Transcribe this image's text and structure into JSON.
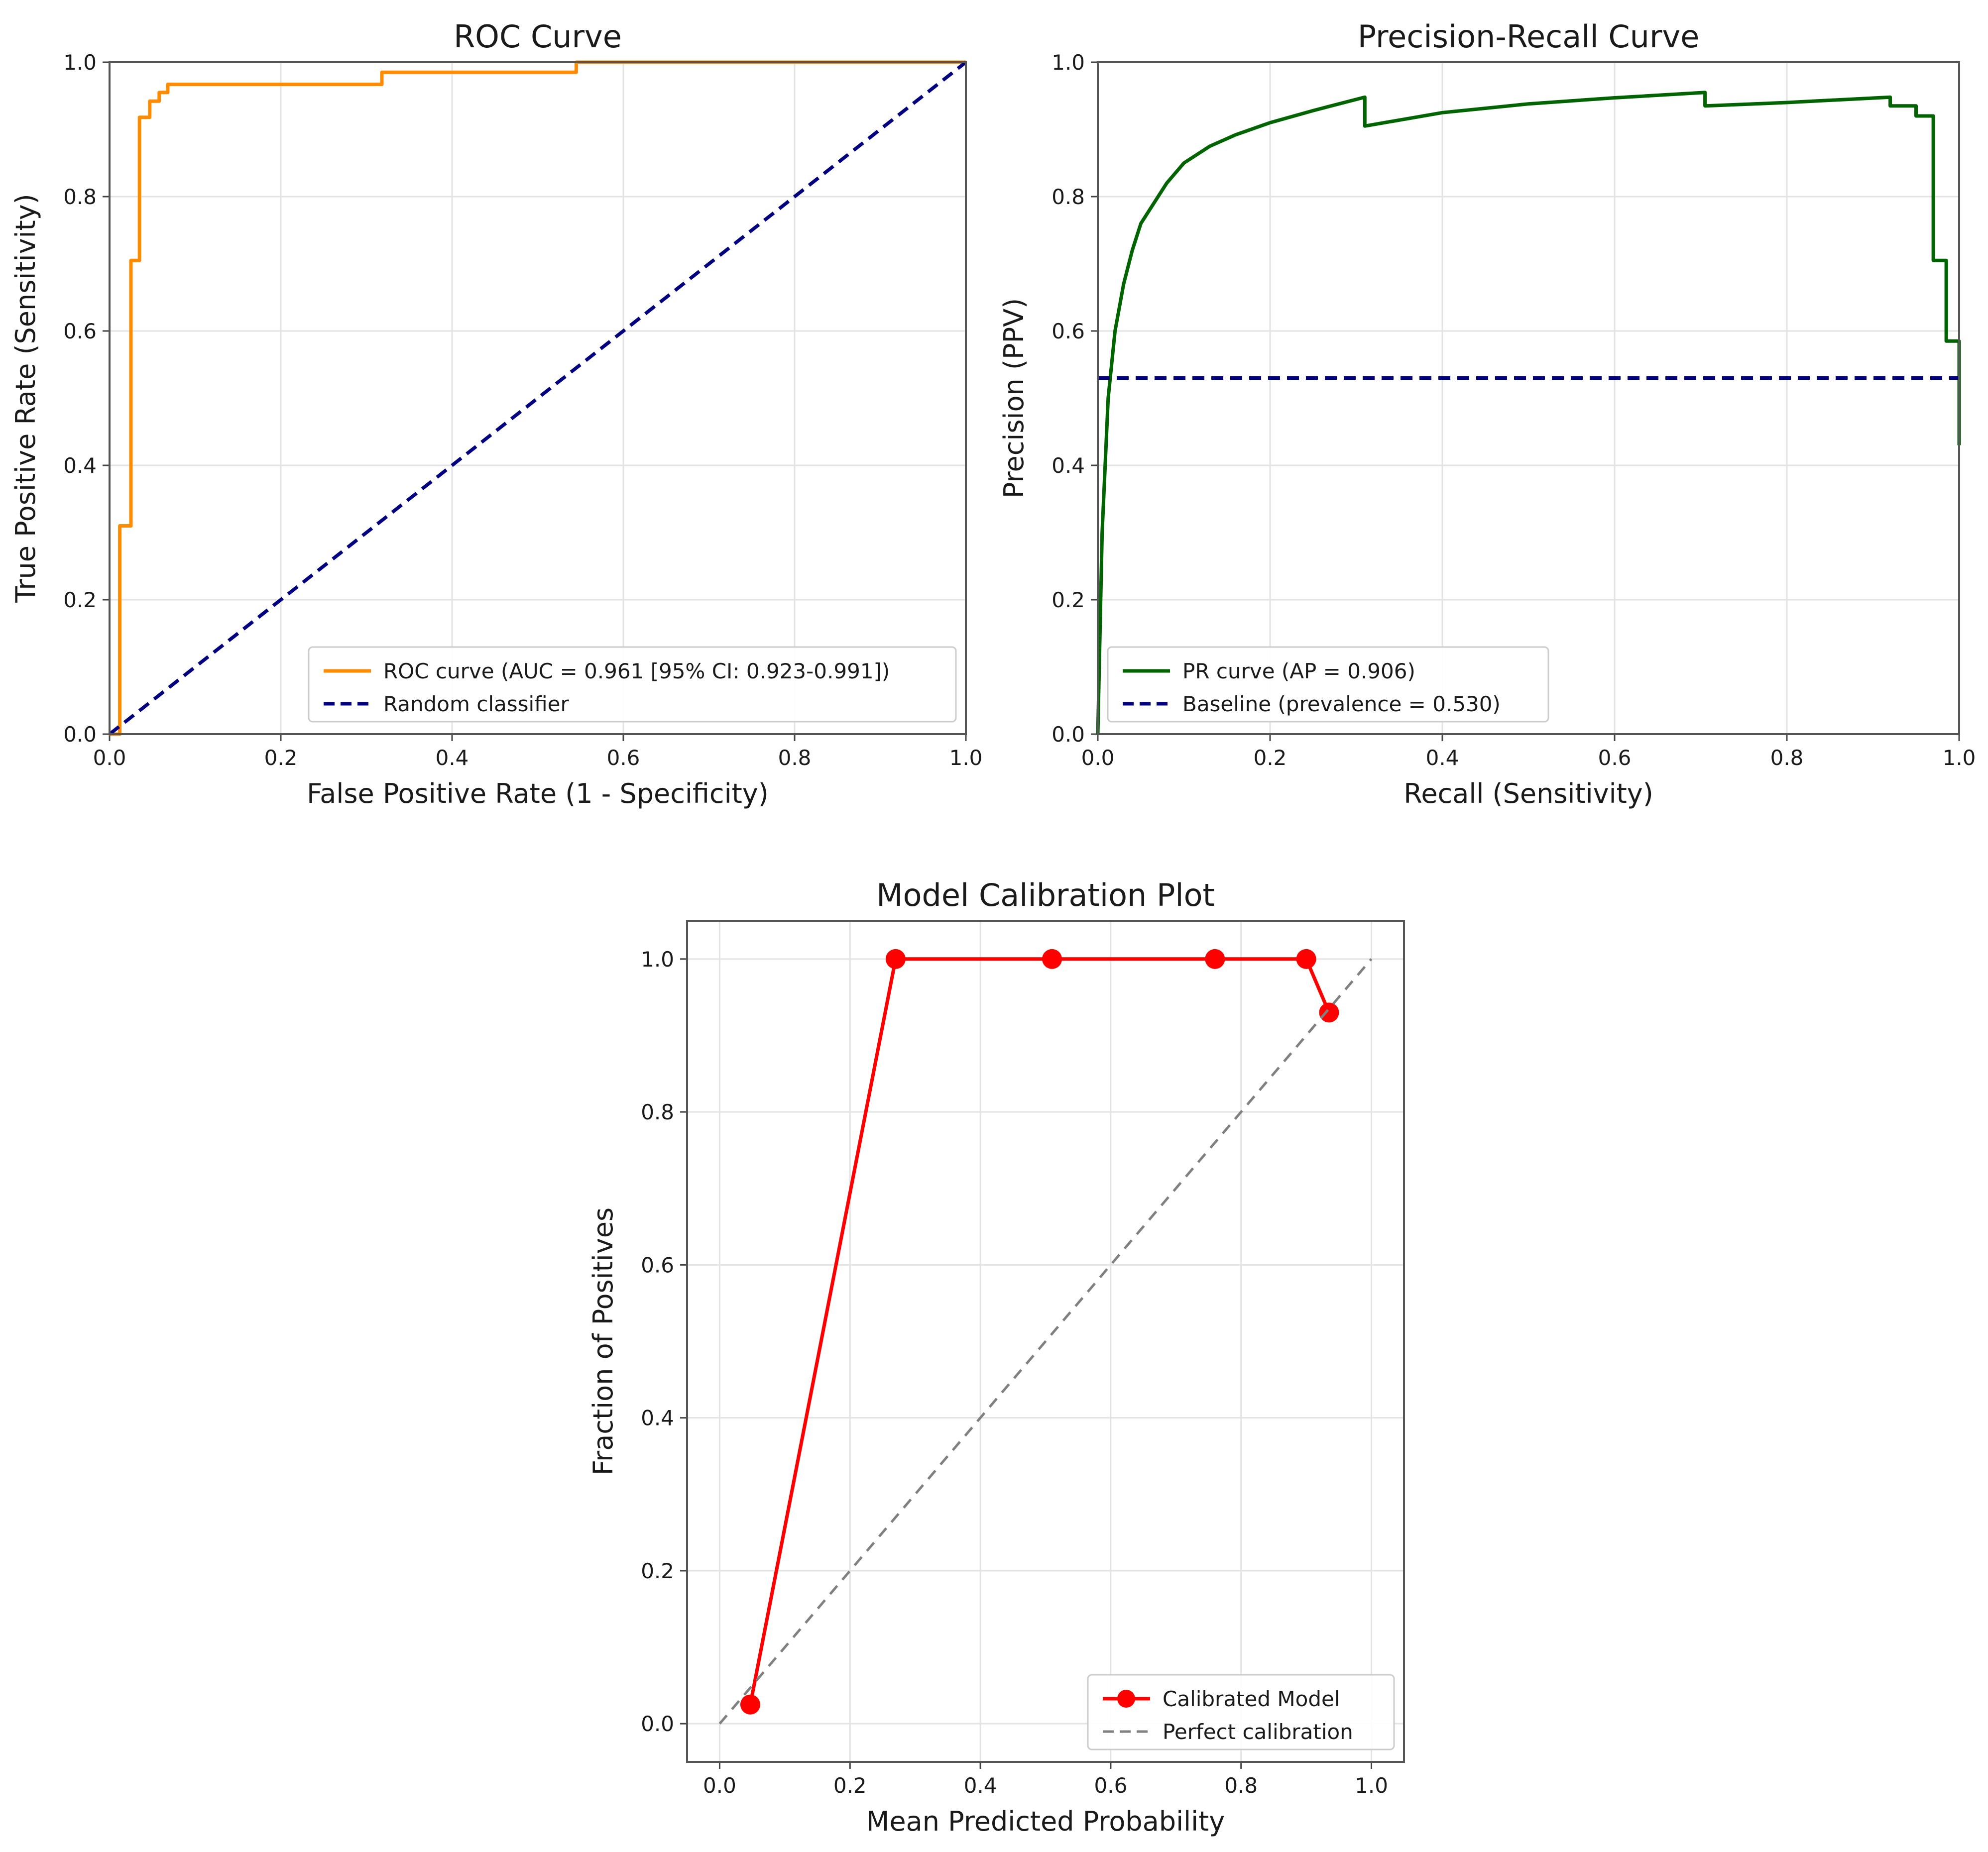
{
  "chart_data": [
    {
      "type": "line",
      "title": "ROC Curve",
      "xlabel": "False Positive Rate (1 - Specificity)",
      "ylabel": "True Positive Rate (Sensitivity)",
      "xlim": [
        0,
        1
      ],
      "ylim": [
        0,
        1
      ],
      "xticks": [
        "0.0",
        "0.2",
        "0.4",
        "0.6",
        "0.8",
        "1.0"
      ],
      "yticks": [
        "0.0",
        "0.2",
        "0.4",
        "0.6",
        "0.8",
        "1.0"
      ],
      "grid": true,
      "legend_position": "lower-right",
      "series": [
        {
          "name": "ROC curve (AUC = 0.961 [95% CI: 0.923-0.991])",
          "color": "#ff8c00",
          "style": "solid",
          "x": [
            0,
            0.012,
            0.012,
            0.025,
            0.025,
            0.035,
            0.035,
            0.047,
            0.047,
            0.058,
            0.058,
            0.068,
            0.068,
            0.318,
            0.318,
            0.545,
            0.545,
            1.0
          ],
          "y": [
            0,
            0,
            0.31,
            0.31,
            0.705,
            0.705,
            0.918,
            0.918,
            0.942,
            0.942,
            0.955,
            0.955,
            0.967,
            0.967,
            0.985,
            0.985,
            1.0,
            1.0
          ]
        },
        {
          "name": "Random classifier",
          "color": "#000080",
          "style": "dashed",
          "x": [
            0,
            1
          ],
          "y": [
            0,
            1
          ]
        }
      ]
    },
    {
      "type": "line",
      "title": "Precision-Recall Curve",
      "xlabel": "Recall (Sensitivity)",
      "ylabel": "Precision (PPV)",
      "xlim": [
        0,
        1
      ],
      "ylim": [
        0,
        1
      ],
      "xticks": [
        "0.0",
        "0.2",
        "0.4",
        "0.6",
        "0.8",
        "1.0"
      ],
      "yticks": [
        "0.0",
        "0.2",
        "0.4",
        "0.6",
        "0.8",
        "1.0"
      ],
      "grid": true,
      "legend_position": "lower-left",
      "series": [
        {
          "name": "PR curve (AP = 0.906)",
          "color": "#006400",
          "style": "solid",
          "x": [
            0,
            0.005,
            0.012,
            0.02,
            0.03,
            0.04,
            0.05,
            0.06,
            0.08,
            0.1,
            0.13,
            0.16,
            0.2,
            0.25,
            0.31,
            0.31,
            0.4,
            0.5,
            0.6,
            0.705,
            0.705,
            0.8,
            0.92,
            0.92,
            0.95,
            0.95,
            0.97,
            0.97,
            0.985,
            0.985,
            1.0,
            1.0
          ],
          "y": [
            0.0,
            0.3,
            0.5,
            0.6,
            0.67,
            0.72,
            0.76,
            0.78,
            0.82,
            0.85,
            0.875,
            0.892,
            0.91,
            0.928,
            0.948,
            0.905,
            0.925,
            0.938,
            0.947,
            0.955,
            0.935,
            0.94,
            0.948,
            0.935,
            0.935,
            0.92,
            0.92,
            0.705,
            0.705,
            0.585,
            0.585,
            0.43
          ]
        },
        {
          "name": "Baseline (prevalence = 0.530)",
          "color": "#000080",
          "style": "dashed",
          "x": [
            0,
            1
          ],
          "y": [
            0.53,
            0.53
          ]
        }
      ]
    },
    {
      "type": "line",
      "title": "Model Calibration Plot",
      "xlabel": "Mean Predicted Probability",
      "ylabel": "Fraction of Positives",
      "xlim": [
        -0.05,
        1.05
      ],
      "ylim": [
        -0.05,
        1.05
      ],
      "xticks": [
        "0.0",
        "0.2",
        "0.4",
        "0.6",
        "0.8",
        "1.0"
      ],
      "yticks": [
        "0.0",
        "0.2",
        "0.4",
        "0.6",
        "0.8",
        "1.0"
      ],
      "grid": true,
      "legend_position": "lower-right",
      "series": [
        {
          "name": "Calibrated Model",
          "color": "#ff0000",
          "style": "solid",
          "markers": true,
          "x": [
            0.047,
            0.27,
            0.51,
            0.76,
            0.9,
            0.935
          ],
          "y": [
            0.025,
            1.0,
            1.0,
            1.0,
            1.0,
            0.93
          ]
        },
        {
          "name": "Perfect calibration",
          "color": "#808080",
          "style": "dashed",
          "x": [
            0,
            1
          ],
          "y": [
            0,
            1
          ]
        }
      ]
    }
  ]
}
